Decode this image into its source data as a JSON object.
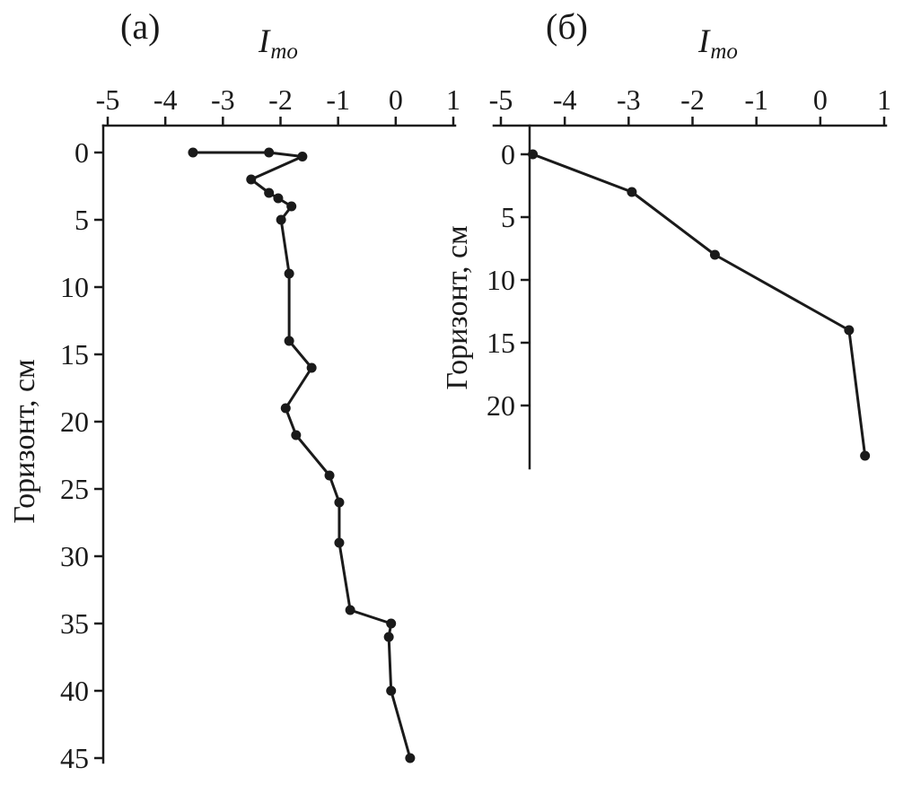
{
  "style": {
    "background": "#ffffff",
    "line_color": "#1a1a1a",
    "text_color": "#1a1a1a"
  },
  "chart_data": [
    {
      "type": "line",
      "panel_label": "(а)",
      "title_main": "I",
      "title_sub": "то",
      "ylabel": "Горизонт, см",
      "xlim": [
        -5,
        1
      ],
      "ylim": [
        0,
        45
      ],
      "xticks": [
        -5,
        -4,
        -3,
        -2,
        -1,
        0,
        1
      ],
      "yticks": [
        0,
        5,
        10,
        15,
        20,
        25,
        30,
        35,
        40,
        45
      ],
      "legend": "none",
      "grid": false,
      "series": [
        {
          "name": "profile-a",
          "points": [
            {
              "imo": -3.52,
              "depth": 0
            },
            {
              "imo": -2.2,
              "depth": 0
            },
            {
              "imo": -1.62,
              "depth": 0.3
            },
            {
              "imo": -2.51,
              "depth": 2
            },
            {
              "imo": -2.2,
              "depth": 3
            },
            {
              "imo": -2.04,
              "depth": 3.4
            },
            {
              "imo": -1.81,
              "depth": 4
            },
            {
              "imo": -1.99,
              "depth": 5
            },
            {
              "imo": -1.85,
              "depth": 9
            },
            {
              "imo": -1.85,
              "depth": 14
            },
            {
              "imo": -1.46,
              "depth": 16
            },
            {
              "imo": -1.91,
              "depth": 19
            },
            {
              "imo": -1.73,
              "depth": 21
            },
            {
              "imo": -1.15,
              "depth": 24
            },
            {
              "imo": -0.98,
              "depth": 26
            },
            {
              "imo": -0.98,
              "depth": 29
            },
            {
              "imo": -0.79,
              "depth": 34
            },
            {
              "imo": -0.08,
              "depth": 35
            },
            {
              "imo": -0.12,
              "depth": 36
            },
            {
              "imo": -0.08,
              "depth": 40
            },
            {
              "imo": 0.25,
              "depth": 45
            }
          ]
        }
      ]
    },
    {
      "type": "line",
      "panel_label": "(б)",
      "title_main": "I",
      "title_sub": "то",
      "ylabel": "Горизонт, см",
      "xlim": [
        -5,
        1
      ],
      "ylim": [
        0,
        25
      ],
      "xticks": [
        -5,
        -4,
        -3,
        -2,
        -1,
        0,
        1
      ],
      "yticks": [
        0,
        5,
        10,
        15,
        20
      ],
      "legend": "none",
      "grid": false,
      "series": [
        {
          "name": "profile-b",
          "points": [
            {
              "imo": -4.5,
              "depth": 0
            },
            {
              "imo": -2.95,
              "depth": 3
            },
            {
              "imo": -1.65,
              "depth": 8
            },
            {
              "imo": 0.45,
              "depth": 14
            },
            {
              "imo": 0.7,
              "depth": 24
            }
          ]
        }
      ]
    }
  ]
}
